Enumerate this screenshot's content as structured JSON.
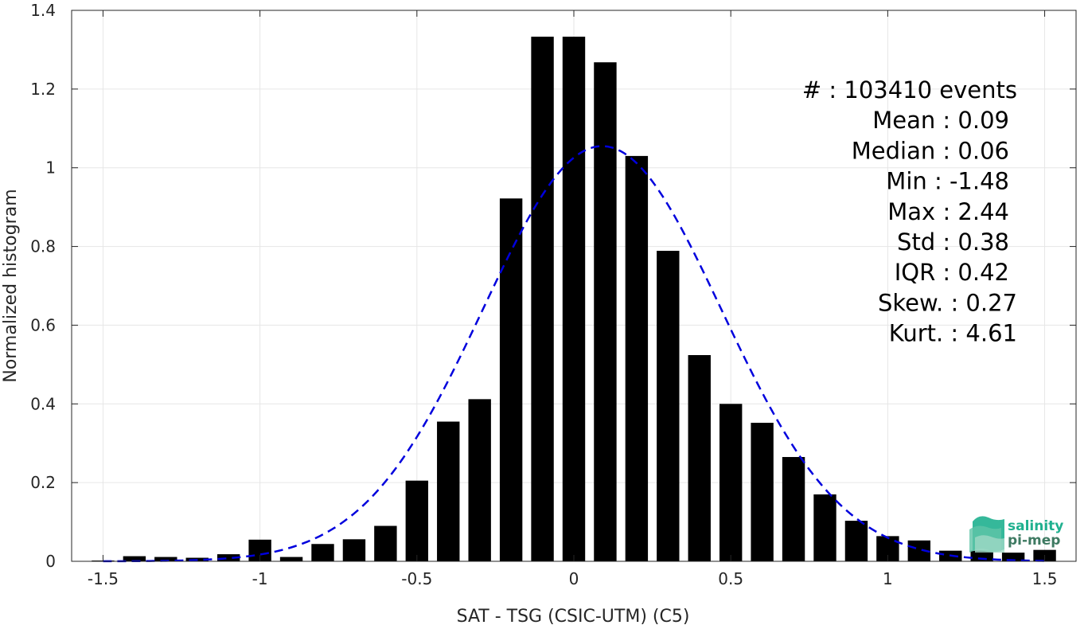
{
  "chart_data": {
    "type": "bar",
    "xlabel": "SAT - TSG (CSIC-UTM) (C5)",
    "ylabel": "Normalized histogram",
    "xlim": [
      -1.6,
      1.6
    ],
    "ylim": [
      0,
      1.4
    ],
    "xticks": [
      "-1.5",
      "-1",
      "-0.5",
      "0",
      "0.5",
      "1",
      "1.5"
    ],
    "xtick_values": [
      -1.5,
      -1,
      -0.5,
      0,
      0.5,
      1,
      1.5
    ],
    "yticks": [
      "0",
      "0.2",
      "0.4",
      "0.6",
      "0.8",
      "1",
      "1.2",
      "1.4"
    ],
    "ytick_values": [
      0,
      0.2,
      0.4,
      0.6,
      0.8,
      1,
      1.2,
      1.4
    ],
    "grid": true,
    "bar_color": "#000000",
    "bars": {
      "x": [
        -1.5,
        -1.4,
        -1.3,
        -1.2,
        -1.1,
        -1.0,
        -0.9,
        -0.8,
        -0.7,
        -0.6,
        -0.5,
        -0.4,
        -0.3,
        -0.2,
        -0.1,
        0.0,
        0.1,
        0.2,
        0.3,
        0.4,
        0.5,
        0.6,
        0.7,
        0.8,
        0.9,
        1.0,
        1.1,
        1.2,
        1.3,
        1.4,
        1.5
      ],
      "values": [
        0.002,
        0.013,
        0.011,
        0.009,
        0.018,
        0.055,
        0.011,
        0.044,
        0.056,
        0.09,
        0.205,
        0.355,
        0.412,
        0.922,
        1.333,
        1.333,
        1.268,
        1.03,
        0.789,
        0.524,
        0.4,
        0.352,
        0.265,
        0.17,
        0.103,
        0.064,
        0.053,
        0.027,
        0.027,
        0.022,
        0.029
      ]
    },
    "fit_curve": {
      "style": "dashed",
      "color": "#0000dd",
      "mean": 0.09,
      "std": 0.38,
      "peak": 1.055
    },
    "stats": [
      "#  : 103410 events",
      "Mean : 0.09",
      "Median : 0.06",
      "Min : -1.48",
      "Max : 2.44",
      "Std : 0.38",
      "IQR : 0.42",
      "Skew. : 0.27",
      "Kurt. : 4.61"
    ]
  },
  "logo": {
    "line1": "salinity",
    "line2": "pi-mep",
    "color1": "#1fb08f",
    "color2": "#3e7a62"
  }
}
